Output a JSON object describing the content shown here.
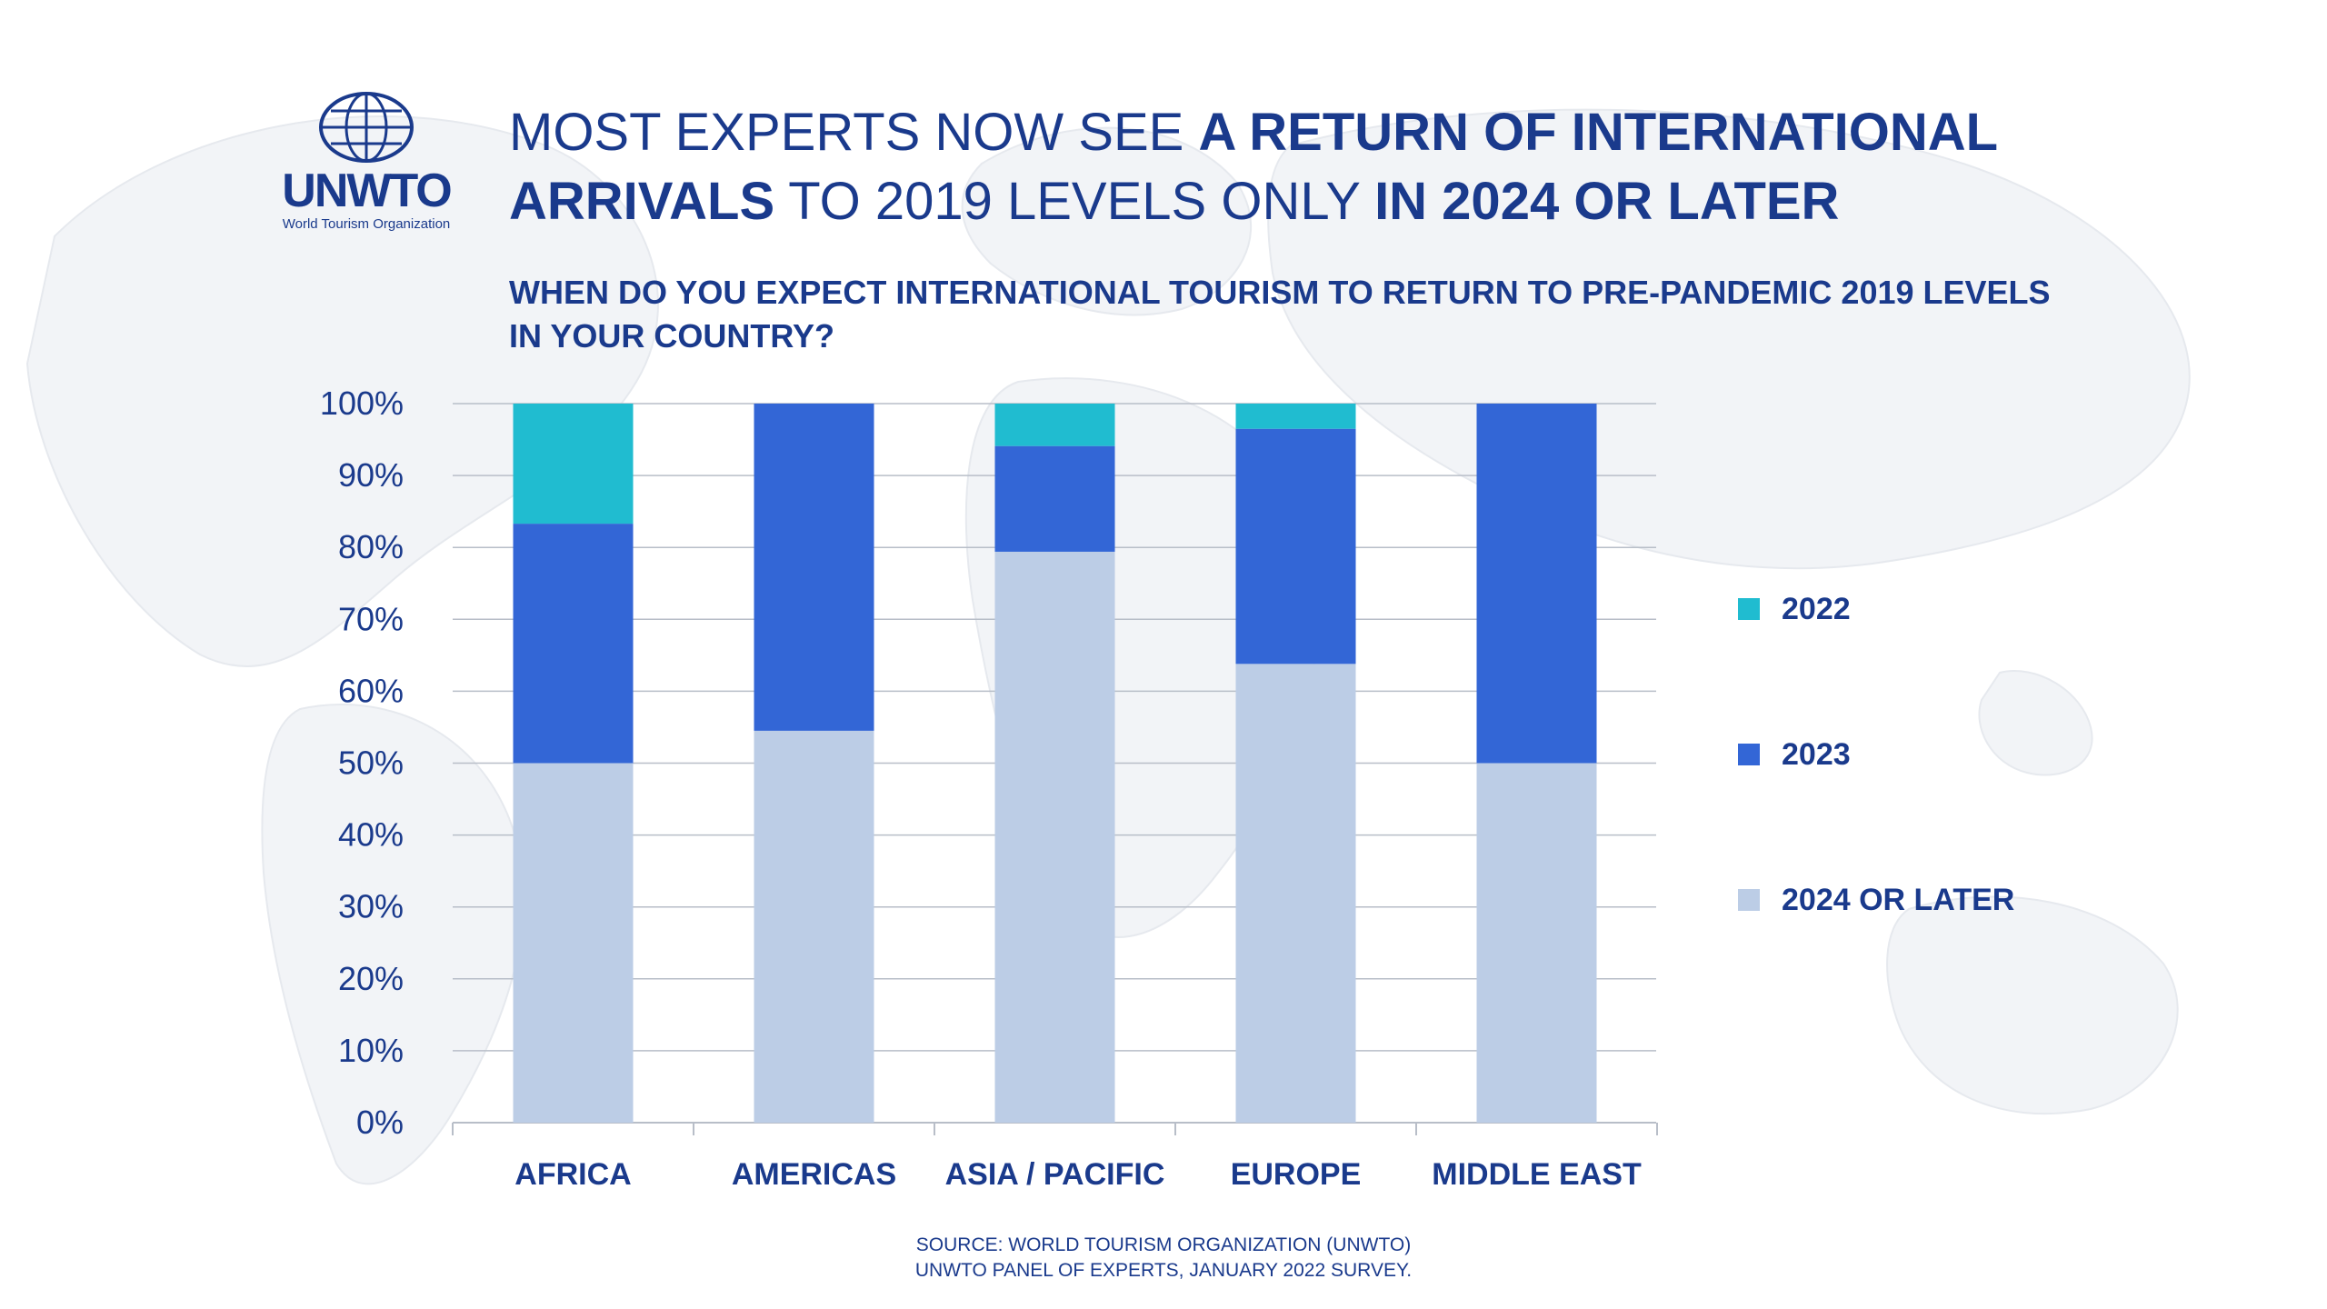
{
  "header": {
    "title_line1_light": "MOST EXPERTS NOW SEE ",
    "title_line1_bold": "A RETURN OF INTERNATIONAL",
    "title_line2_bold_a": "ARRIVALS",
    "title_line2_light": " TO 2019 LEVELS ONLY ",
    "title_line2_bold_b": "IN 2024 OR LATER",
    "question": "WHEN DO YOU EXPECT INTERNATIONAL TOURISM TO RETURN TO PRE-PANDEMIC 2019 LEVELS IN YOUR COUNTRY?"
  },
  "logo": {
    "name": "UNWTO",
    "subtitle": "World Tourism Organization"
  },
  "source": {
    "line1": "SOURCE: WORLD TOURISM ORGANIZATION (UNWTO)",
    "line2": "UNWTO PANEL OF EXPERTS, JANUARY 2022 SURVEY."
  },
  "colors": {
    "primary": "#1a3a8c",
    "series_2022": "#20bcd0",
    "series_2023": "#3366d6",
    "series_2024": "#bccde6",
    "grid": "#b8bec8"
  },
  "chart_data": {
    "type": "bar",
    "stacked": true,
    "title": "WHEN DO YOU EXPECT INTERNATIONAL TOURISM TO RETURN TO PRE-PANDEMIC 2019 LEVELS IN YOUR COUNTRY?",
    "xlabel": "",
    "ylabel": "",
    "ylim": [
      0,
      100
    ],
    "yticks": [
      0,
      10,
      20,
      30,
      40,
      50,
      60,
      70,
      80,
      90,
      100
    ],
    "ytick_labels": [
      "0%",
      "10%",
      "20%",
      "30%",
      "40%",
      "50%",
      "60%",
      "70%",
      "80%",
      "90%",
      "100%"
    ],
    "grid": true,
    "legend_position": "right",
    "categories": [
      "AFRICA",
      "AMERICAS",
      "ASIA / PACIFIC",
      "EUROPE",
      "MIDDLE EAST"
    ],
    "series": [
      {
        "name": "2024 OR LATER",
        "color": "#bccde6",
        "values": [
          50,
          54.5,
          79.4,
          63.8,
          50
        ]
      },
      {
        "name": "2023",
        "color": "#3366d6",
        "values": [
          33.3,
          45.5,
          14.7,
          32.7,
          50
        ]
      },
      {
        "name": "2022",
        "color": "#20bcd0",
        "values": [
          16.7,
          0,
          5.9,
          3.5,
          0
        ]
      }
    ],
    "legend_order": [
      "2022",
      "2023",
      "2024 OR LATER"
    ]
  }
}
